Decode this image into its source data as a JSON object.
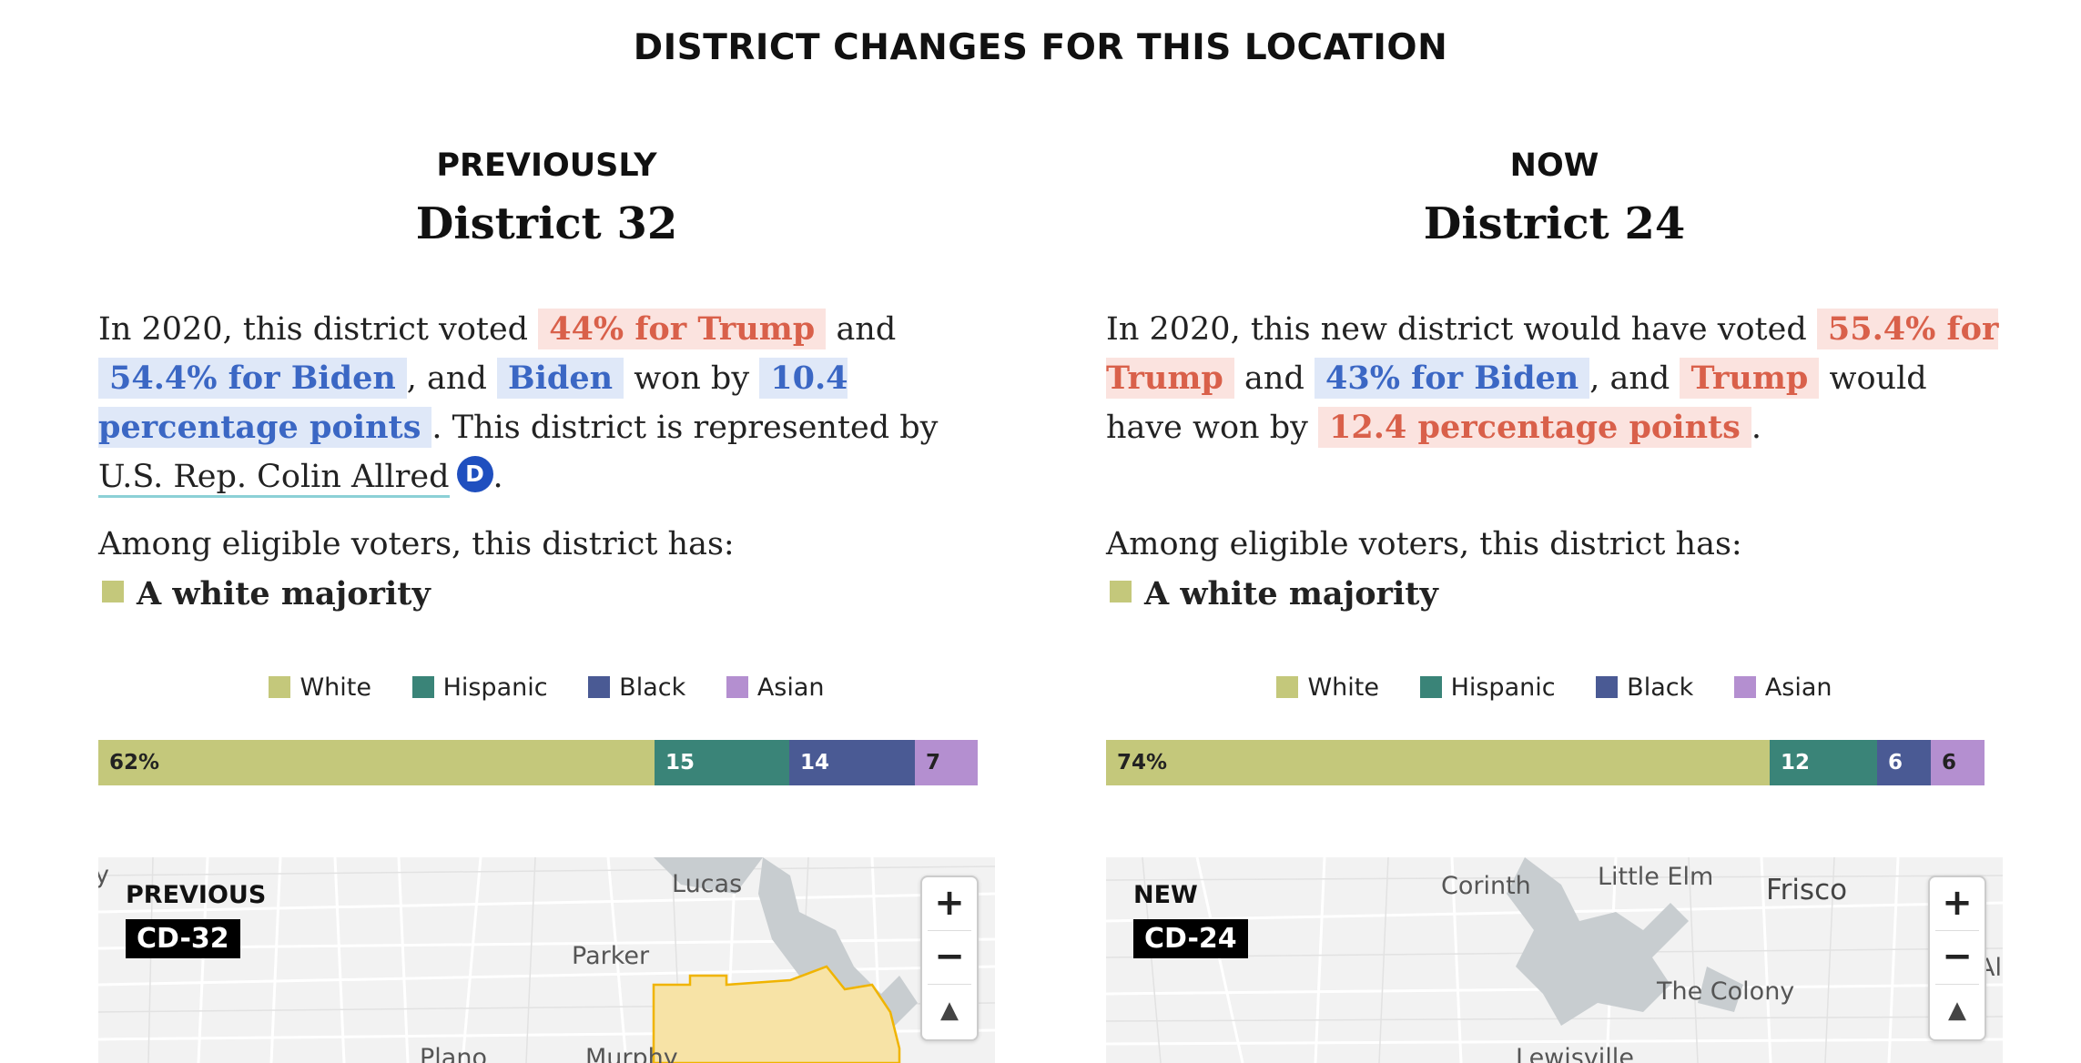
{
  "page_title": "DISTRICT CHANGES FOR THIS LOCATION",
  "colors": {
    "white": "#c4c87b",
    "hispanic": "#3a8478",
    "black": "#4a5a94",
    "asian": "#b48fd0",
    "republican_text": "#d9604a",
    "democrat_text": "#3b67c4",
    "district_fill": "#f7e3a6",
    "district_stroke": "#f0b400"
  },
  "legend": [
    "White",
    "Hispanic",
    "Black",
    "Asian"
  ],
  "left": {
    "kicker": "PREVIOUSLY",
    "district": "District 32",
    "summary": {
      "p1": "In 2020, this district voted",
      "trump": "44% for Trump",
      "p2": "and",
      "biden": "54.4% for Biden",
      "p3": ", and",
      "winner": "Biden",
      "p4": "won by",
      "margin": "10.4 percentage points",
      "p5": ". This district is represented by",
      "rep": "U.S. Rep. Colin Allred",
      "party": "D",
      "p6": "."
    },
    "among": "Among eligible voters, this district has:",
    "majority": "A white majority",
    "demographics": {
      "white": 62,
      "hispanic": 15,
      "black": 14,
      "asian": 7,
      "labels": [
        "62%",
        "15",
        "14",
        "7"
      ]
    },
    "map": {
      "kicker": "PREVIOUS",
      "badge": "CD-32",
      "places": [
        "Lucas",
        "Parker",
        "Plano",
        "Murphy",
        "y"
      ],
      "zoom_in": "+",
      "zoom_out": "−",
      "compass": "▲"
    }
  },
  "right": {
    "kicker": "NOW",
    "district": "District 24",
    "summary": {
      "p1": "In 2020, this new district would have voted",
      "trump": "55.4% for Trump",
      "p2": "and",
      "biden": "43% for Biden",
      "p3": ", and",
      "winner": "Trump",
      "p4": "would have won by",
      "margin": "12.4 percentage points",
      "p5": "."
    },
    "among": "Among eligible voters, this district has:",
    "majority": "A white majority",
    "demographics": {
      "white": 74,
      "hispanic": 12,
      "black": 6,
      "asian": 6,
      "labels": [
        "74%",
        "12",
        "6",
        "6"
      ]
    },
    "map": {
      "kicker": "NEW",
      "badge": "CD-24",
      "places": [
        "Corinth",
        "Little Elm",
        "Frisco",
        "The Colony",
        "Lewisville",
        "All"
      ],
      "zoom_in": "+",
      "zoom_out": "−",
      "compass": "▲"
    }
  }
}
